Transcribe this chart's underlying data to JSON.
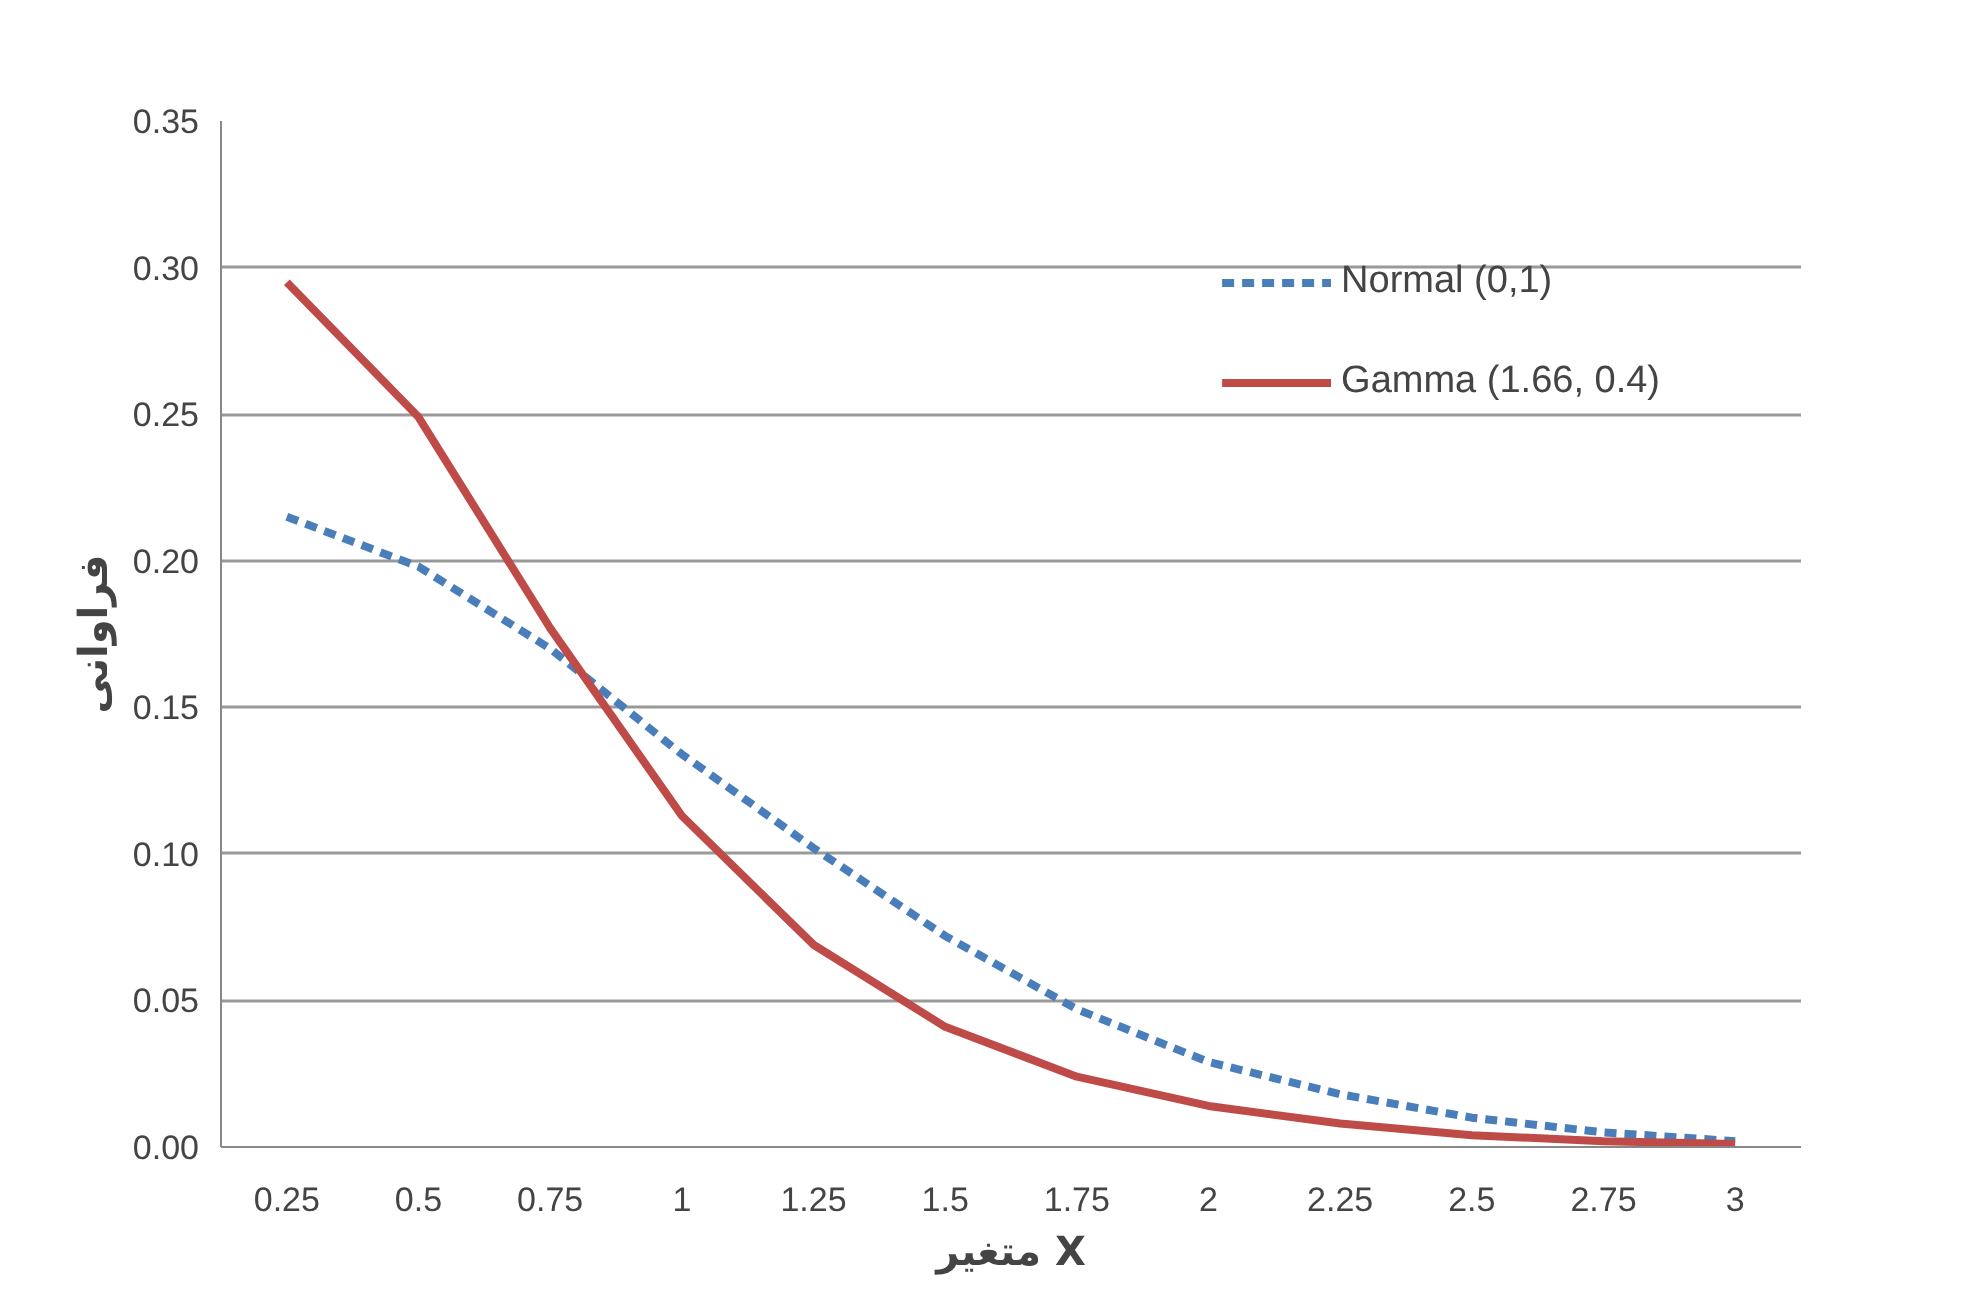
{
  "chart_data": {
    "type": "line",
    "xlabel": "متغیر X",
    "ylabel": "فراوانی",
    "categories": [
      "0.25",
      "0.5",
      "0.75",
      "1",
      "1.25",
      "1.5",
      "1.75",
      "2",
      "2.25",
      "2.5",
      "2.75",
      "3"
    ],
    "series": [
      {
        "name": "Normal (0,1)",
        "color": "#4a7ebb",
        "line_style": "dashed",
        "values": [
          0.215,
          0.198,
          0.17,
          0.134,
          0.102,
          0.072,
          0.047,
          0.029,
          0.018,
          0.01,
          0.005,
          0.002
        ]
      },
      {
        "name": "Gamma (1.66, 0.4)",
        "color": "#be4b48",
        "line_style": "solid",
        "values": [
          0.295,
          0.249,
          0.177,
          0.113,
          0.069,
          0.041,
          0.024,
          0.014,
          0.008,
          0.004,
          0.002,
          0.001
        ]
      }
    ],
    "ylim": [
      0,
      0.35
    ],
    "yticks": [
      {
        "value": 0,
        "label": "0.00"
      },
      {
        "value": 0.05,
        "label": "0.05"
      },
      {
        "value": 0.1,
        "label": "0.10"
      },
      {
        "value": 0.15,
        "label": "0.15"
      },
      {
        "value": 0.2,
        "label": "0.20"
      },
      {
        "value": 0.25,
        "label": "0.25"
      },
      {
        "value": 0.3,
        "label": "0.30"
      },
      {
        "value": 0.35,
        "label": "0.35"
      }
    ],
    "grid": "y",
    "legend": "top right"
  }
}
